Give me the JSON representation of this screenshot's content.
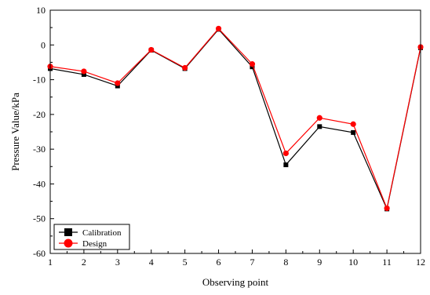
{
  "chart_data": {
    "type": "line",
    "xlabel": "Observing point",
    "ylabel": "Pressure Value/kPa",
    "xlim": [
      1,
      12
    ],
    "ylim": [
      -60,
      10
    ],
    "xticks": [
      "1",
      "2",
      "3",
      "4",
      "5",
      "6",
      "7",
      "8",
      "9",
      "10",
      "11",
      "12"
    ],
    "yticks": [
      "10",
      "0",
      "-10",
      "-20",
      "-30",
      "-40",
      "-50",
      "-60"
    ],
    "x": [
      1,
      2,
      3,
      4,
      5,
      6,
      7,
      8,
      9,
      10,
      11,
      12
    ],
    "grid": false,
    "legend": "bottom-left",
    "series": [
      {
        "name": "Calibration",
        "color": "#000000",
        "marker": "square",
        "values": [
          -6.8,
          -8.5,
          -11.8,
          -1.5,
          -6.8,
          4.5,
          -6.3,
          -34.5,
          -23.5,
          -25.2,
          -47.2,
          -0.8
        ]
      },
      {
        "name": "Design",
        "color": "#ff0000",
        "marker": "circle",
        "values": [
          -6.2,
          -7.6,
          -11.0,
          -1.4,
          -6.6,
          4.7,
          -5.5,
          -31.2,
          -21.0,
          -22.8,
          -47.0,
          -0.6
        ]
      }
    ]
  }
}
